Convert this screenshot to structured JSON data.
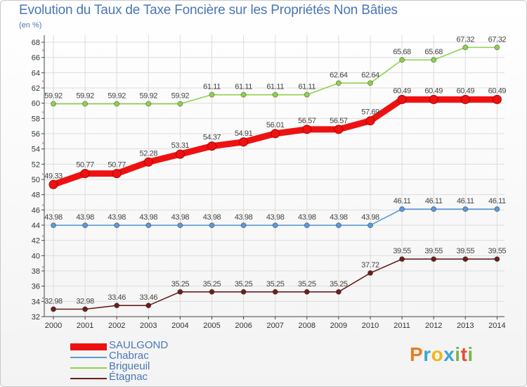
{
  "header": {
    "title": "Evolution du Taux de Taxe Foncière sur les Propriétés Non Bâties",
    "unit": "(en %)"
  },
  "brand": {
    "letters": [
      "P",
      "r",
      "o",
      "x",
      "i",
      "t",
      "i"
    ],
    "colors": [
      "#e67e22",
      "#3fa3d8",
      "#f2b617",
      "#3fa3d8",
      "#7ab648",
      "#e74c3c",
      "#7ab648"
    ]
  },
  "colors": {
    "axis": "#444444",
    "grid": "#dcdcdc",
    "tick_label": "#333333"
  },
  "chart_data": {
    "type": "line",
    "title": "Evolution du Taux de Taxe Foncière sur les Propriétés Non Bâties",
    "ylabel": "(en %)",
    "x": [
      "2000",
      "2001",
      "2002",
      "2003",
      "2004",
      "2005",
      "2006",
      "2007",
      "2008",
      "2009",
      "2010",
      "2011",
      "2012",
      "2013",
      "2014"
    ],
    "ylim": [
      32,
      68
    ],
    "yticks": [
      32,
      34,
      36,
      38,
      40,
      42,
      44,
      46,
      48,
      50,
      52,
      54,
      56,
      58,
      60,
      62,
      64,
      66,
      68
    ],
    "grid": true,
    "legend": "bottom-left",
    "series": [
      {
        "name": "SAULGOND",
        "color": "#ee1111",
        "emphasis": true,
        "values": [
          49.33,
          50.77,
          50.77,
          52.28,
          53.31,
          54.37,
          54.91,
          56.01,
          56.57,
          56.57,
          57.69,
          60.49,
          60.49,
          60.49,
          60.49
        ],
        "labels": [
          "49.33",
          "50.77",
          "50.77",
          "52.28",
          "53.31",
          "54.37",
          "54.91",
          "56.01",
          "56.57",
          "56.57",
          "57.69",
          "60.49",
          "60.49",
          "60.49",
          "60.49"
        ]
      },
      {
        "name": "Chabrac",
        "color": "#5b9bd5",
        "emphasis": false,
        "values": [
          43.98,
          43.98,
          43.98,
          43.98,
          43.98,
          43.98,
          43.98,
          43.98,
          43.98,
          43.98,
          43.98,
          46.11,
          46.11,
          46.11,
          46.11
        ],
        "labels": [
          "43.98",
          "43.98",
          "43.98",
          "43.98",
          "43.98",
          "43.98",
          "43.98",
          "43.98",
          "43.98",
          "43.98",
          "43.98",
          "46.11",
          "46.11",
          "46.11",
          "46.11"
        ]
      },
      {
        "name": "Brigueuil",
        "color": "#8fd14f",
        "emphasis": false,
        "values": [
          59.92,
          59.92,
          59.92,
          59.92,
          59.92,
          61.11,
          61.11,
          61.11,
          61.11,
          62.64,
          62.64,
          65.68,
          65.68,
          67.32,
          67.32
        ],
        "labels": [
          "59.92",
          "59.92",
          "59.92",
          "59.92",
          "59.92",
          "61.11",
          "61.11",
          "61.11",
          "61.11",
          "62.64",
          "62.64",
          "65.68",
          "65.68",
          "67.32",
          "67.32"
        ]
      },
      {
        "name": "Étagnac",
        "color": "#6b1f1f",
        "emphasis": false,
        "values": [
          32.98,
          32.98,
          33.46,
          33.46,
          35.25,
          35.25,
          35.25,
          35.25,
          35.25,
          35.25,
          37.72,
          39.55,
          39.55,
          39.55,
          39.55
        ],
        "labels": [
          "32.98",
          "32.98",
          "33.46",
          "33.46",
          "35.25",
          "35.25",
          "35.25",
          "35.25",
          "35.25",
          "35.25",
          "37.72",
          "39.55",
          "39.55",
          "39.55",
          "39.55"
        ]
      }
    ]
  }
}
